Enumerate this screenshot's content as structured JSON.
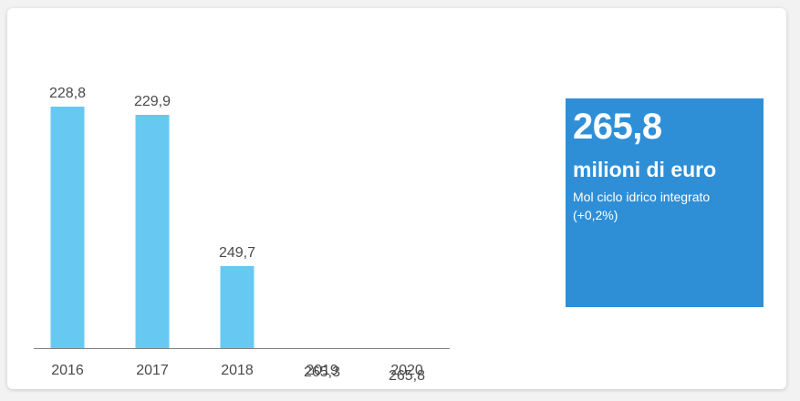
{
  "chart_data": {
    "type": "bar",
    "categories": [
      "2016",
      "2017",
      "2018",
      "2019",
      "2020"
    ],
    "values": [
      228.8,
      229.9,
      249.7,
      265.3,
      265.8
    ],
    "value_labels": [
      "228,8",
      "229,9",
      "249,7",
      "265,3",
      "265,8"
    ],
    "title": "",
    "xlabel": "",
    "ylabel": "",
    "grid": false,
    "legend": "none",
    "colors": {
      "default": "#67c8f2",
      "highlight": "#2f8fd6",
      "axis": "#808080",
      "text": "#4a4a4a"
    },
    "highlight_index": 4
  },
  "kpi": {
    "value": "265,8",
    "unit": "milioni di euro",
    "description": "Mol ciclo idrico integrato",
    "change": "(+0,2%)",
    "background": "#2f8fd6"
  }
}
